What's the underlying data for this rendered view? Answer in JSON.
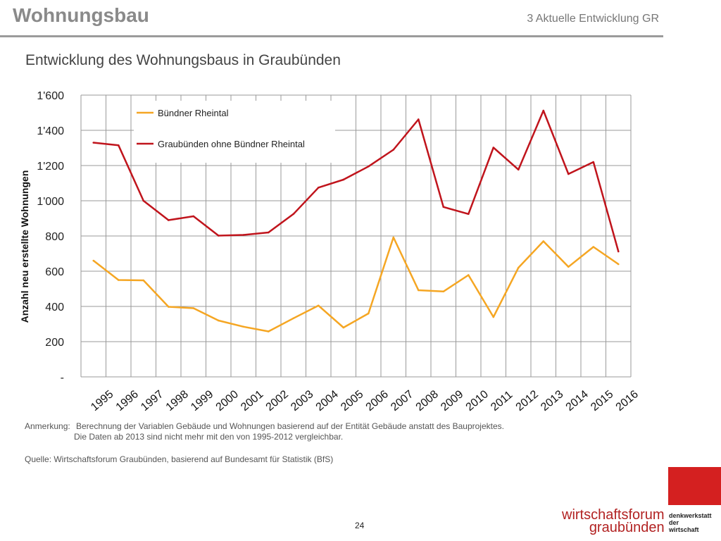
{
  "header": {
    "title": "Wohnungsbau",
    "section": "3 Aktuelle Entwicklung GR"
  },
  "subtitle": "Entwicklung des Wohnungsbaus in Graubünden",
  "notes": {
    "anmerkung_label": "Anmerkung:",
    "anmerkung_line1": "Berechnung der Variablen Gebäude und Wohnungen basierend auf der Entität Gebäude anstatt des Bauprojektes.",
    "anmerkung_line2": "Die Daten ab 2013 sind nicht mehr mit den von 1995-2012 vergleichbar.",
    "quelle": "Quelle: Wirtschaftsforum Graubünden, basierend auf Bundesamt für Statistik (BfS)"
  },
  "page_number": "24",
  "logo": {
    "line1": "wirtschaftsforum",
    "line2": "graubünden",
    "side1": "denkwerkstatt",
    "side2": "der",
    "side3": "wirtschaft",
    "color": "#d42020"
  },
  "chart_data": {
    "type": "line",
    "ylabel": "Anzahl neu erstellte Wohnungen",
    "ylim": [
      0,
      1600
    ],
    "yticks": [
      0,
      200,
      400,
      600,
      800,
      1000,
      1200,
      1400,
      1600
    ],
    "ytick_labels": [
      "-",
      "200",
      "400",
      "600",
      "800",
      "1'000",
      "1'200",
      "1'400",
      "1'600"
    ],
    "categories": [
      "1995",
      "1996",
      "1997",
      "1998",
      "1999",
      "2000",
      "2001",
      "2002",
      "2003",
      "2004",
      "2005",
      "2006",
      "2007",
      "2008",
      "2009",
      "2010",
      "2011",
      "2012",
      "2013",
      "2014",
      "2015",
      "2016"
    ],
    "grid": true,
    "legend_position": "top-left",
    "series": [
      {
        "name": "Bündner Rheintal",
        "color": "#f5a623",
        "values": [
          660,
          550,
          548,
          398,
          390,
          320,
          285,
          258,
          333,
          405,
          280,
          360,
          792,
          492,
          485,
          578,
          340,
          620,
          770,
          625,
          738,
          640
        ]
      },
      {
        "name": "Graubünden ohne Bündner Rheintal",
        "color": "#c0141c",
        "values": [
          1330,
          1315,
          1000,
          890,
          912,
          802,
          806,
          820,
          925,
          1075,
          1120,
          1195,
          1290,
          1462,
          965,
          925,
          1302,
          1177,
          1512,
          1152,
          1220,
          712
        ]
      }
    ]
  }
}
